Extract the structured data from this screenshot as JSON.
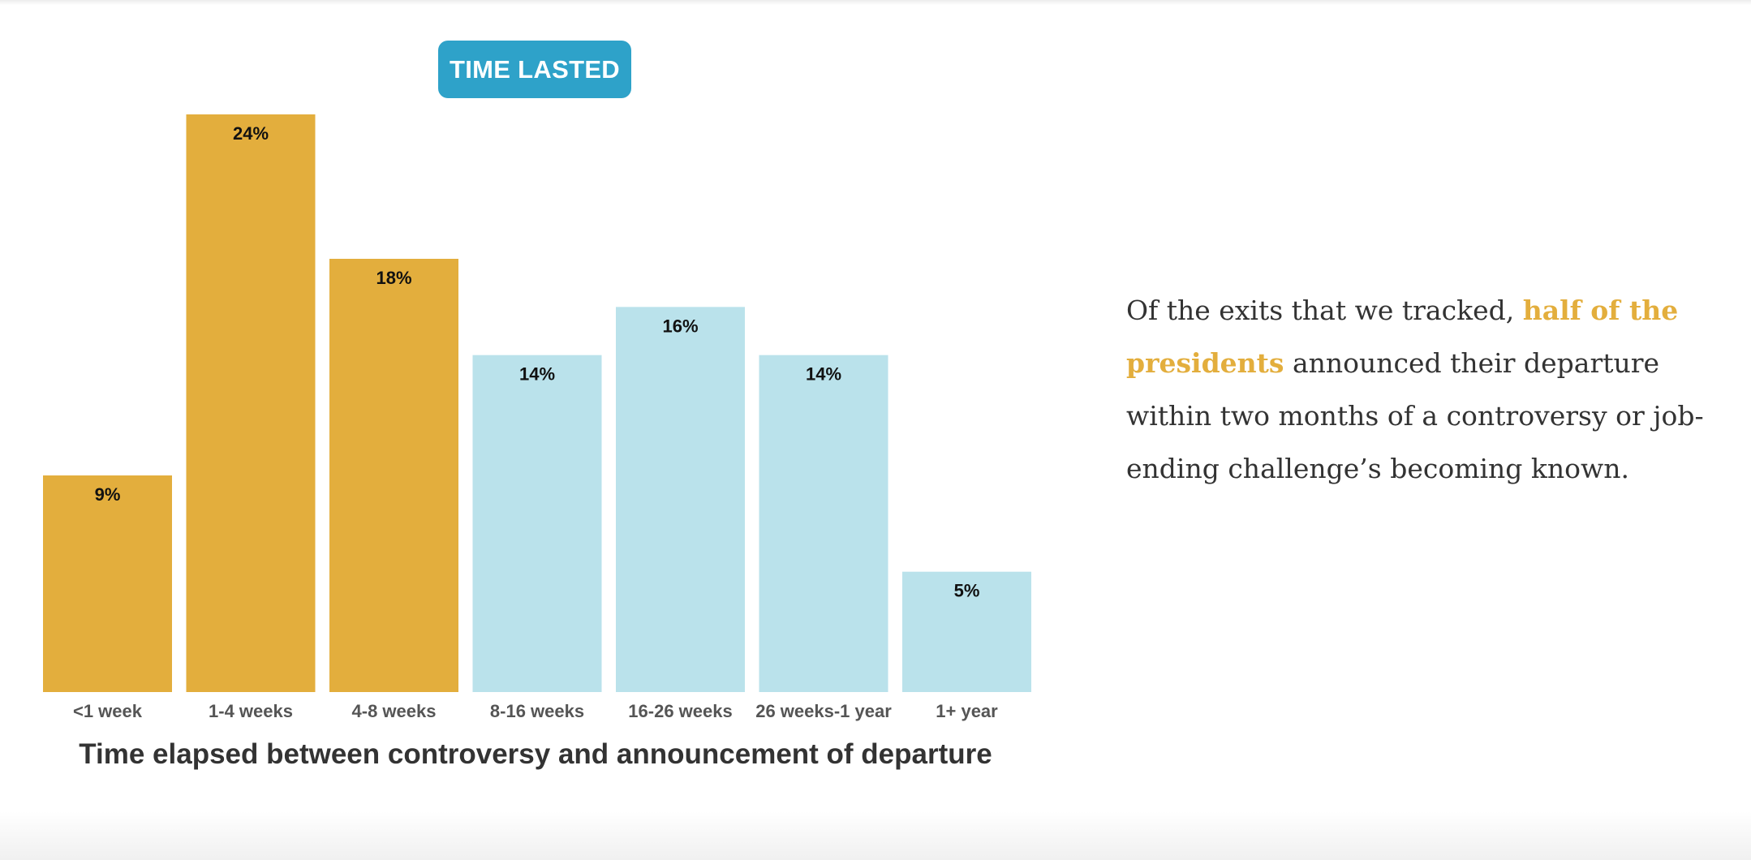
{
  "badge": {
    "label": "TIME LASTED"
  },
  "chart_data": {
    "type": "bar",
    "categories": [
      "<1 week",
      "1-4 weeks",
      "4-8 weeks",
      "8-16 weeks",
      "16-26 weeks",
      "26 weeks-1 year",
      "1+ year"
    ],
    "values": [
      9,
      24,
      18,
      14,
      16,
      14,
      5
    ],
    "value_labels": [
      "9%",
      "24%",
      "18%",
      "14%",
      "16%",
      "14%",
      "5%"
    ],
    "unit": "%",
    "ylim": [
      0,
      24
    ],
    "grid": false,
    "xlabel": "Time elapsed between controversy and announcement of departure",
    "ylabel": "",
    "bar_colors": [
      "#e3ae3d",
      "#e3ae3d",
      "#e3ae3d",
      "#bae2eb",
      "#bae2eb",
      "#bae2eb",
      "#bae2eb"
    ]
  },
  "narrative": {
    "before": "Of the exits that we tracked, ",
    "highlight": "half of the presidents",
    "after": " announced their departure within two months of a controversy or job-ending challenge’s becoming known."
  },
  "colors": {
    "highlight": "#e3ae3d",
    "short_tenure": "#e3ae3d",
    "long_tenure": "#bae2eb",
    "badge": "#2ea2c9",
    "text": "#333333"
  }
}
